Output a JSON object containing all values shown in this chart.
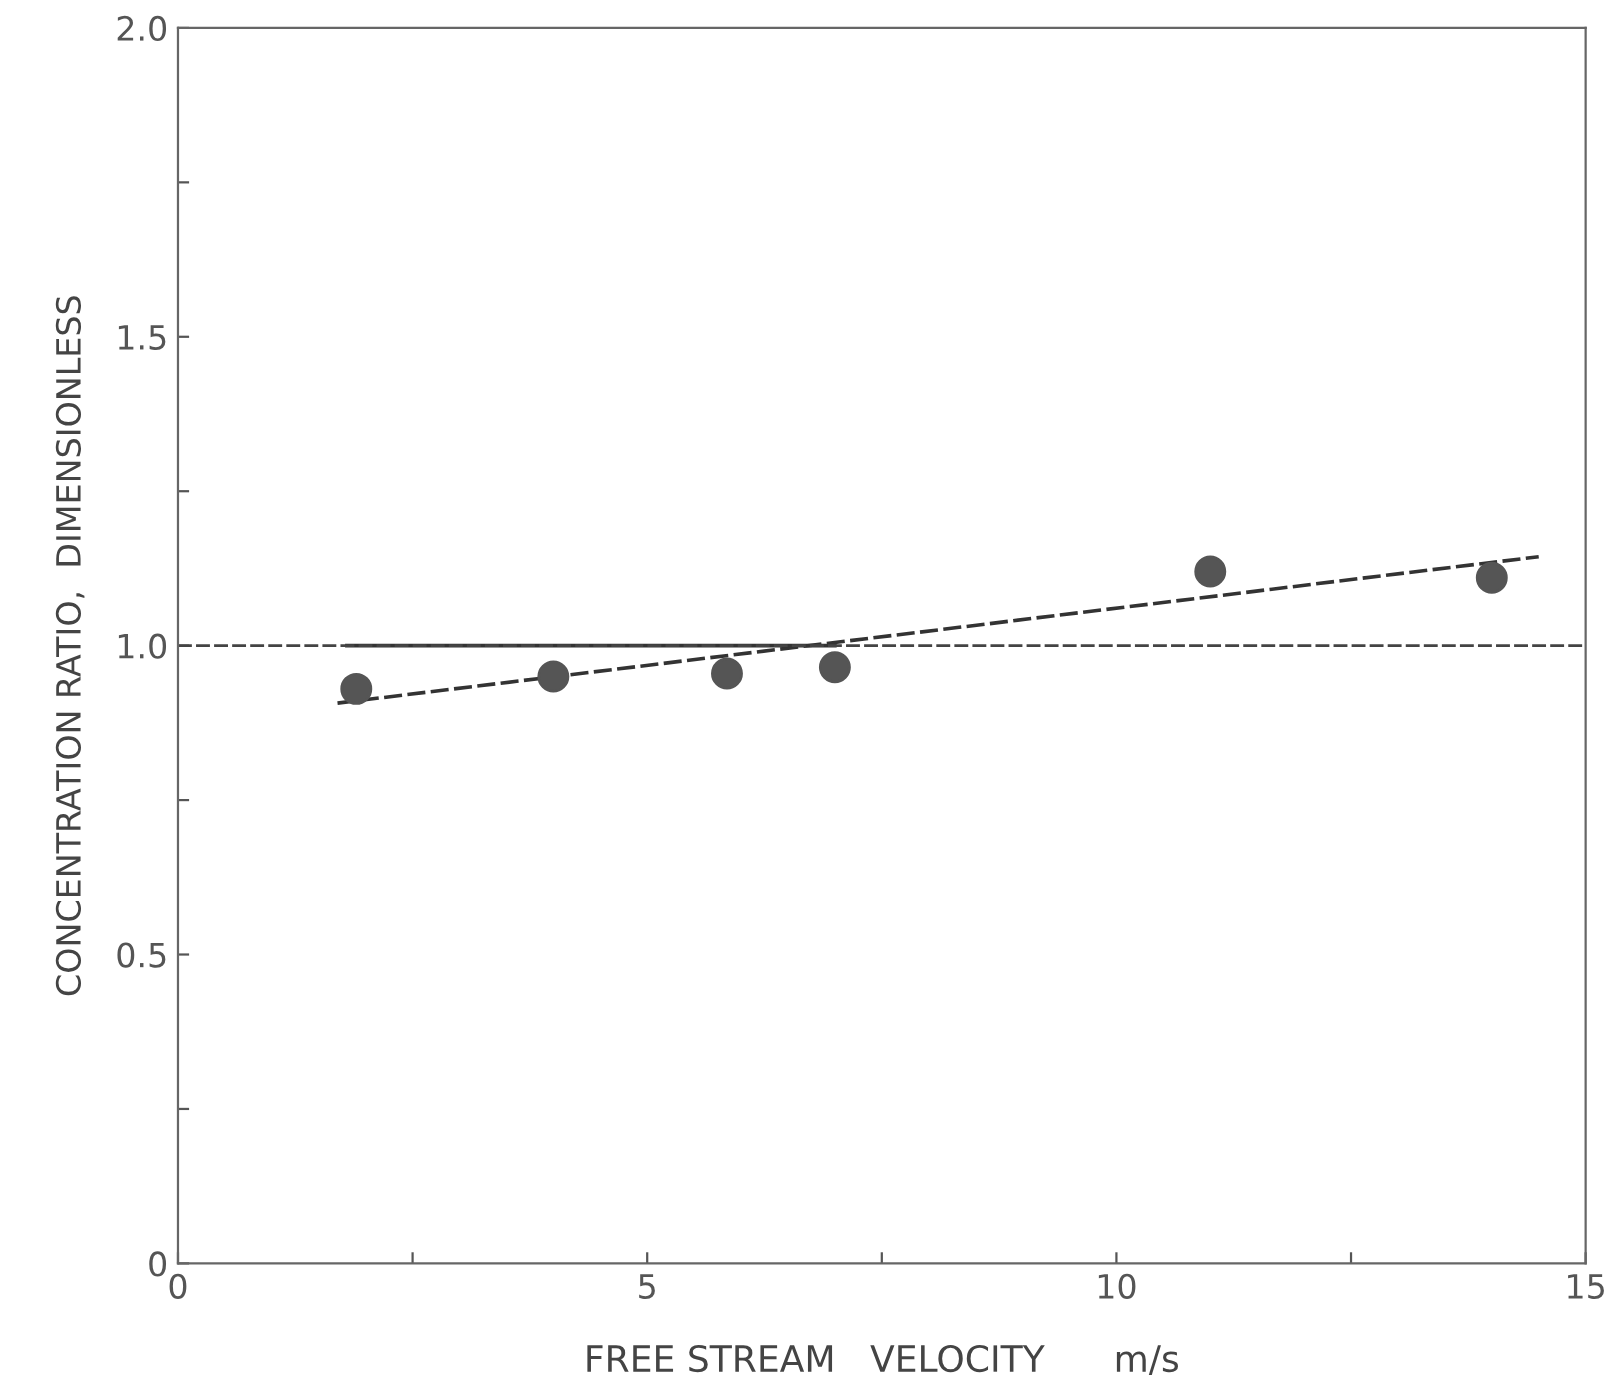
{
  "chart_data": {
    "type": "scatter",
    "xlabel": "FREE STREAM   VELOCITY      m/s",
    "ylabel": "CONCENTRATION RATIO,  DIMENSIONLESS",
    "xlim": [
      0,
      15
    ],
    "ylim": [
      0,
      2.0
    ],
    "xticks": [
      0,
      {
        "value": 2.5,
        "label": null
      },
      5,
      {
        "value": 7.5,
        "label": null
      },
      10,
      {
        "value": 12.5,
        "label": null
      },
      15
    ],
    "yticks": [
      0,
      {
        "value": 0.25,
        "label": null
      },
      {
        "value": 0.5,
        "label": "0.5"
      },
      {
        "value": 0.75,
        "label": null
      },
      {
        "value": 1,
        "label": "1.0"
      },
      {
        "value": 1.25,
        "label": null
      },
      {
        "value": 1.5,
        "label": "1.5"
      },
      {
        "value": 1.75,
        "label": null
      },
      {
        "value": 2,
        "label": "2.0"
      }
    ],
    "grid": false,
    "legend": false,
    "series": [
      {
        "marker": "circle",
        "color": "#555555",
        "x": [
          1.9,
          4,
          5.85,
          7,
          11,
          14
        ],
        "values": [
          0.93,
          0.95,
          0.955,
          0.965,
          1.12,
          1.11
        ]
      },
      {
        "type": "line",
        "marker": "none",
        "line_style": "dashed",
        "color": "#333333",
        "x": [
          1.7,
          14.5
        ],
        "values": [
          0.907,
          1.144
        ]
      },
      {
        "type": "line",
        "marker": "none",
        "line_style": "solid",
        "color": "#333333",
        "x": [
          1.8,
          7.0
        ],
        "values": [
          1.0,
          1.0
        ]
      }
    ],
    "ref_lines": [
      {
        "axis": "y",
        "value": 1.0,
        "line_style": "dashed",
        "color": "#444444"
      }
    ]
  }
}
